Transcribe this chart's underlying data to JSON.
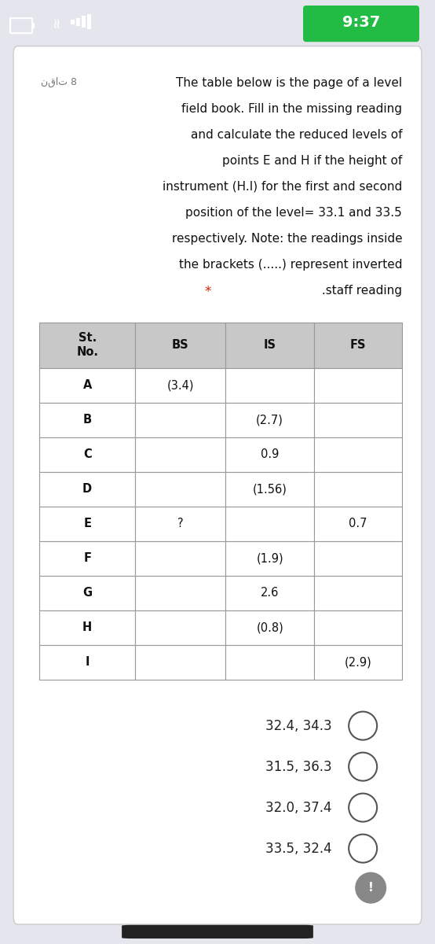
{
  "bg_color": "#e5e5ed",
  "card_color": "#ffffff",
  "status_bar_bg": "#2a2a3a",
  "status_bar_text": "9:37",
  "question_label": "نقات 8",
  "question_text_lines": [
    "The table below is the page of a level",
    "field book. Fill in the missing reading",
    "and calculate the reduced levels of",
    "points E and H if the height of",
    "instrument (H.I) for the first and second",
    "position of the level= 33.1 and 33.5",
    "respectively. Note: the readings inside",
    "the brackets (.....) represent inverted",
    "* .staff reading"
  ],
  "table_headers": [
    "St.\nNo.",
    "BS",
    "IS",
    "FS"
  ],
  "table_rows": [
    [
      "A",
      "(3.4)",
      "",
      ""
    ],
    [
      "B",
      "",
      "(2.7)",
      ""
    ],
    [
      "C",
      "",
      "0.9",
      ""
    ],
    [
      "D",
      "",
      "(1.56)",
      ""
    ],
    [
      "E",
      "?",
      "",
      "0.7"
    ],
    [
      "F",
      "",
      "(1.9)",
      ""
    ],
    [
      "G",
      "",
      "2.6",
      ""
    ],
    [
      "H",
      "",
      "(0.8)",
      ""
    ],
    [
      "I",
      "",
      "",
      "(2.9)"
    ]
  ],
  "options": [
    "32.4, 34.3",
    "31.5, 36.3",
    "32.0, 37.4",
    "33.5, 32.4"
  ],
  "header_bg": "#c8c8c8",
  "row_bg_even": "#ffffff",
  "row_bg_odd": "#ffffff",
  "table_text_color": "#111111",
  "option_text_color": "#222222",
  "star_color": "#cc2200"
}
